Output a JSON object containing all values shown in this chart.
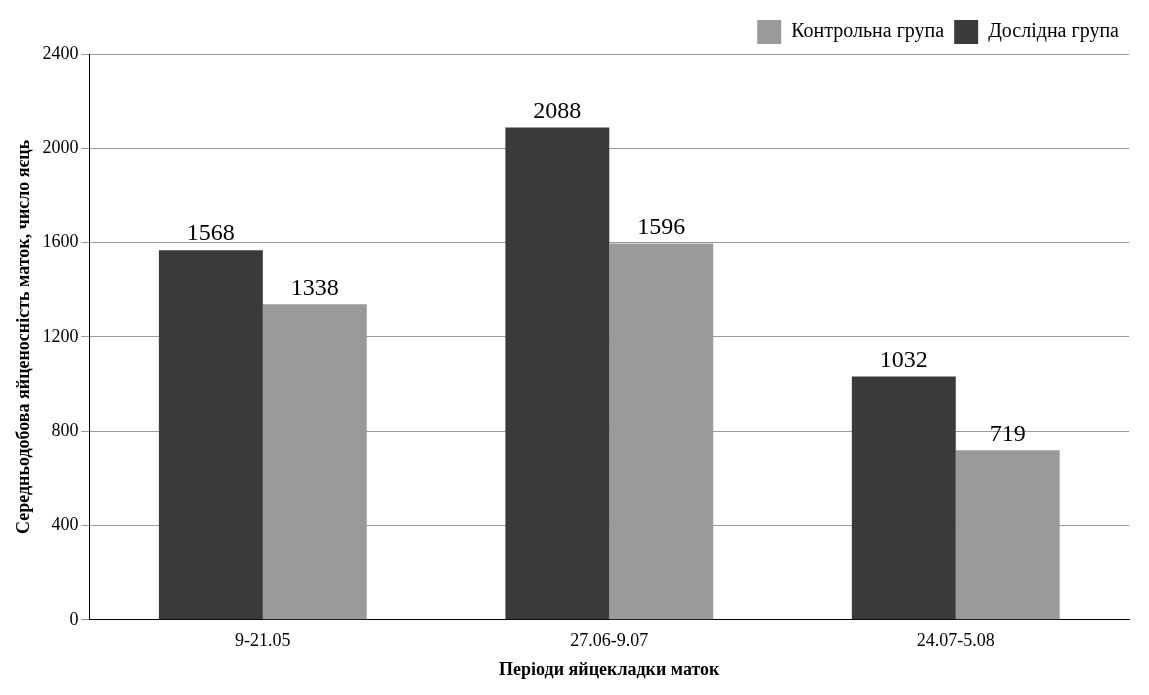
{
  "chart_data": {
    "type": "bar",
    "xlabel": "Періоди яйцекладки маток",
    "ylabel": "Середньодобова яйценосність маток, число яєць",
    "categories": [
      "9-21.05",
      "27.06-9.07",
      "24.07-5.08"
    ],
    "series": [
      {
        "name": "Дослідна група",
        "color": "#3a3a3a",
        "values": [
          1568,
          2088,
          1032
        ]
      },
      {
        "name": "Контрольна група",
        "color": "#9a9a9a",
        "values": [
          1338,
          1596,
          719
        ]
      }
    ],
    "ylim": [
      0,
      2400
    ],
    "yticks": [
      0,
      400,
      800,
      1200,
      1600,
      2000,
      2400
    ],
    "grid": "y",
    "legend": "top right",
    "data_labels": true
  }
}
